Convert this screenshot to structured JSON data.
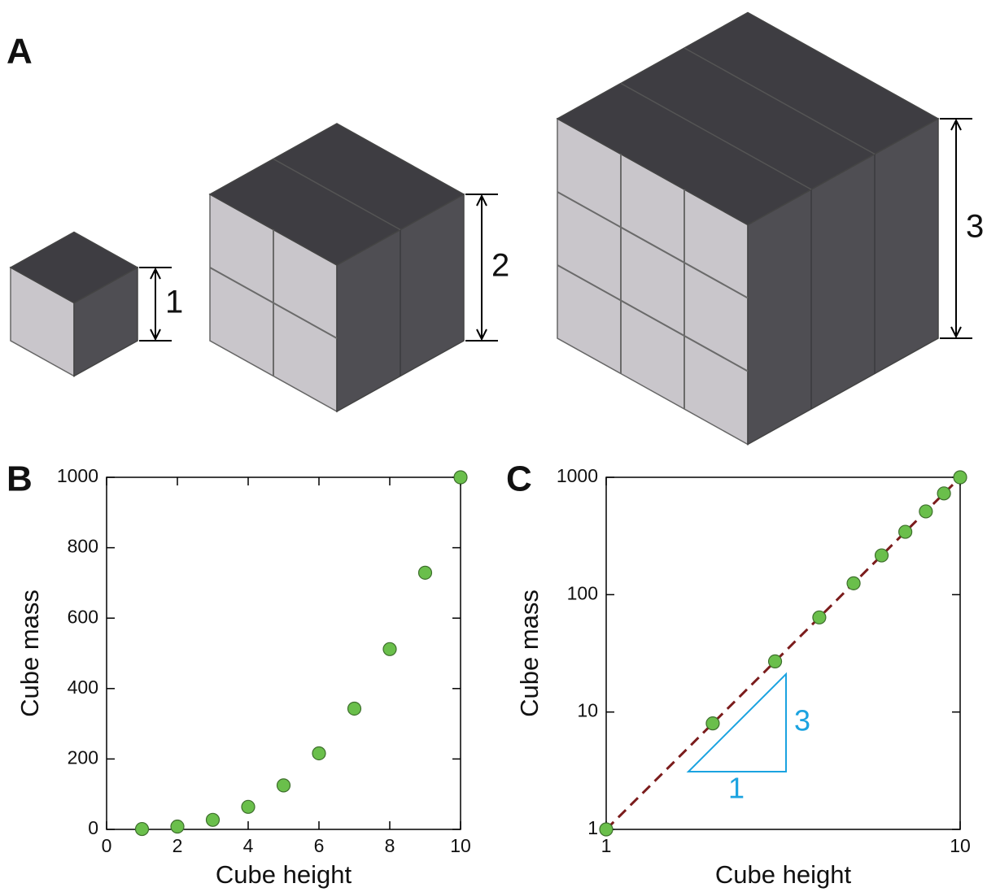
{
  "panel_a": {
    "label": "A",
    "cubes": [
      {
        "height": 1
      },
      {
        "height": 2
      },
      {
        "height": 3
      }
    ]
  },
  "chart_data": [
    {
      "type": "scatter",
      "panel_label": "B",
      "x_label": "Cube height",
      "y_label": "Cube mass",
      "x": [
        1,
        2,
        3,
        4,
        5,
        6,
        7,
        8,
        9,
        10
      ],
      "series": [
        {
          "color": "#6abf4b",
          "values": [
            1,
            8,
            27,
            64,
            125,
            216,
            343,
            512,
            729,
            1000
          ]
        }
      ],
      "xlim": [
        0,
        10
      ],
      "ylim": [
        0,
        1000
      ],
      "xticks": [
        0,
        2,
        4,
        6,
        8,
        10
      ],
      "yticks": [
        0,
        200,
        400,
        600,
        800,
        1000
      ]
    },
    {
      "type": "scatter",
      "panel_label": "C",
      "x_label": "Cube height",
      "y_label": "Cube mass",
      "log_x": true,
      "log_y": true,
      "x": [
        1,
        2,
        3,
        4,
        5,
        6,
        7,
        8,
        9,
        10
      ],
      "series": [
        {
          "color": "#6abf4b",
          "values": [
            1,
            8,
            27,
            64,
            125,
            216,
            343,
            512,
            729,
            1000
          ]
        }
      ],
      "fit": {
        "x": [
          1,
          10
        ],
        "values": [
          1,
          1000
        ],
        "color": "#7b1c1c"
      },
      "triangle": {
        "run_label": "1",
        "rise_label": "3",
        "color": "#1ba3e0"
      },
      "xlim": [
        1,
        10
      ],
      "ylim": [
        1,
        1000
      ],
      "xticks": [
        1,
        10
      ],
      "yticks": [
        1,
        10,
        100,
        1000
      ]
    }
  ]
}
